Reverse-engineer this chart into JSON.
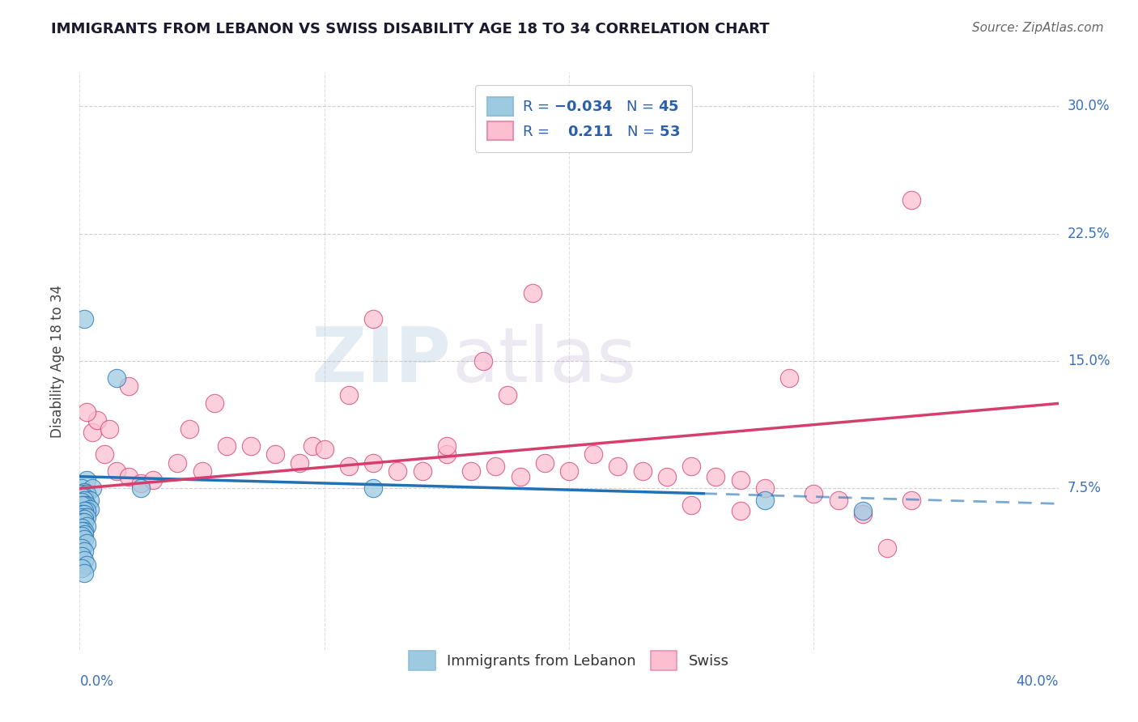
{
  "title": "IMMIGRANTS FROM LEBANON VS SWISS DISABILITY AGE 18 TO 34 CORRELATION CHART",
  "source": "Source: ZipAtlas.com",
  "ylabel": "Disability Age 18 to 34",
  "legend_label_blue": "Immigrants from Lebanon",
  "legend_label_pink": "Swiss",
  "n_blue": "45",
  "r_pink": "0.211",
  "n_pink": "53",
  "xlim": [
    0.0,
    0.4
  ],
  "ylim": [
    -0.02,
    0.32
  ],
  "yticks": [
    0.075,
    0.15,
    0.225,
    0.3
  ],
  "ytick_labels": [
    "7.5%",
    "15.0%",
    "22.5%",
    "30.0%"
  ],
  "xticks": [
    0.0,
    0.1,
    0.2,
    0.3,
    0.4
  ],
  "blue_scatter_x": [
    0.002,
    0.003,
    0.001,
    0.005,
    0.002,
    0.001,
    0.003,
    0.002,
    0.001,
    0.004,
    0.002,
    0.001,
    0.003,
    0.002,
    0.001,
    0.004,
    0.003,
    0.002,
    0.001,
    0.002,
    0.001,
    0.003,
    0.002,
    0.001,
    0.002,
    0.003,
    0.001,
    0.002,
    0.001,
    0.002,
    0.001,
    0.002,
    0.003,
    0.001,
    0.002,
    0.001,
    0.002,
    0.003,
    0.001,
    0.002,
    0.015,
    0.025,
    0.12,
    0.28,
    0.32
  ],
  "blue_scatter_y": [
    0.175,
    0.08,
    0.075,
    0.075,
    0.073,
    0.072,
    0.072,
    0.07,
    0.07,
    0.068,
    0.068,
    0.067,
    0.065,
    0.065,
    0.065,
    0.063,
    0.062,
    0.062,
    0.06,
    0.06,
    0.058,
    0.058,
    0.057,
    0.055,
    0.055,
    0.053,
    0.052,
    0.05,
    0.05,
    0.048,
    0.047,
    0.045,
    0.043,
    0.04,
    0.038,
    0.035,
    0.033,
    0.03,
    0.028,
    0.025,
    0.14,
    0.075,
    0.075,
    0.068,
    0.062
  ],
  "pink_scatter_x": [
    0.005,
    0.01,
    0.015,
    0.02,
    0.025,
    0.03,
    0.04,
    0.05,
    0.06,
    0.07,
    0.08,
    0.09,
    0.095,
    0.1,
    0.11,
    0.12,
    0.13,
    0.14,
    0.15,
    0.16,
    0.165,
    0.17,
    0.18,
    0.19,
    0.2,
    0.21,
    0.22,
    0.23,
    0.24,
    0.25,
    0.26,
    0.27,
    0.28,
    0.3,
    0.31,
    0.32,
    0.007,
    0.012,
    0.055,
    0.11,
    0.175,
    0.25,
    0.33,
    0.34,
    0.003,
    0.02,
    0.12,
    0.27,
    0.34,
    0.045,
    0.29,
    0.185,
    0.15
  ],
  "pink_scatter_y": [
    0.108,
    0.095,
    0.085,
    0.082,
    0.078,
    0.08,
    0.09,
    0.085,
    0.1,
    0.1,
    0.095,
    0.09,
    0.1,
    0.098,
    0.088,
    0.09,
    0.085,
    0.085,
    0.095,
    0.085,
    0.15,
    0.088,
    0.082,
    0.09,
    0.085,
    0.095,
    0.088,
    0.085,
    0.082,
    0.088,
    0.082,
    0.08,
    0.075,
    0.072,
    0.068,
    0.06,
    0.115,
    0.11,
    0.125,
    0.13,
    0.13,
    0.065,
    0.04,
    0.068,
    0.12,
    0.135,
    0.175,
    0.062,
    0.245,
    0.11,
    0.14,
    0.19,
    0.1
  ],
  "blue_line_x0": 0.0,
  "blue_line_x1": 0.255,
  "blue_line_dash_x0": 0.255,
  "blue_line_dash_x1": 0.4,
  "blue_line_y0": 0.082,
  "blue_line_y1": 0.072,
  "blue_line_dash_y0": 0.072,
  "blue_line_dash_y1": 0.066,
  "pink_line_x0": 0.0,
  "pink_line_x1": 0.4,
  "pink_line_y0": 0.075,
  "pink_line_y1": 0.125,
  "color_blue": "#9ecae1",
  "color_pink": "#fcbfd2",
  "color_blue_line": "#2171b5",
  "color_pink_line": "#d63e6e",
  "watermark_zip": "ZIP",
  "watermark_atlas": "atlas",
  "background_color": "#ffffff",
  "grid_color": "#b0b0b0"
}
